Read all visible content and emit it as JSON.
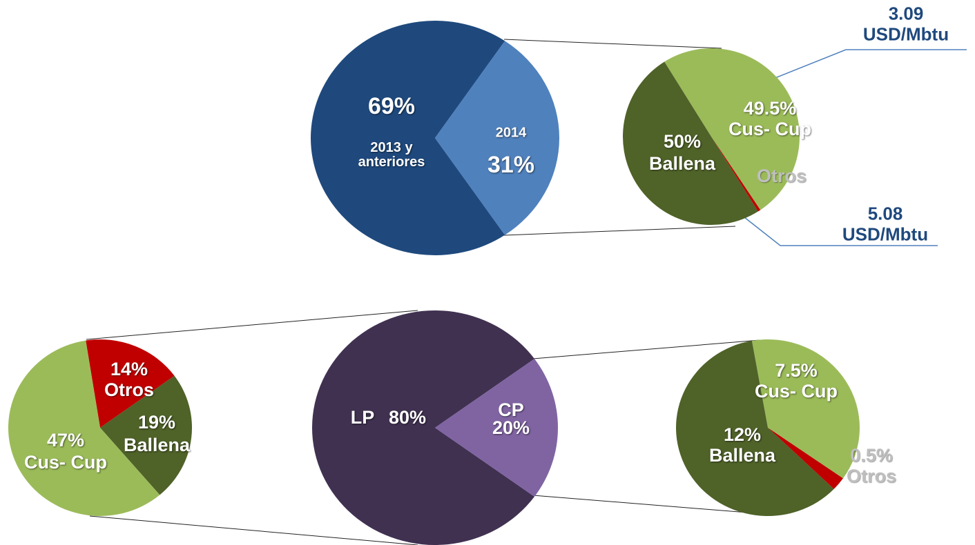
{
  "chart_data": [
    {
      "type": "pie",
      "categories": [
        "2013 y anteriores",
        "2014"
      ],
      "values": [
        69,
        31
      ],
      "value_labels": [
        "69%",
        "31%"
      ],
      "colors": [
        "#1f497d",
        "#4f81bd"
      ]
    },
    {
      "type": "pie",
      "categories": [
        "Cus- Cup",
        "Otros",
        "Ballena"
      ],
      "values": [
        49.5,
        0.5,
        50
      ],
      "value_labels": [
        "49.5%",
        null,
        "50%"
      ],
      "colors": [
        "#9bbb59",
        "#c00000",
        "#4f6228"
      ],
      "annotations": [
        [
          "3.09",
          "USD/Mbtu"
        ],
        [
          "5.08",
          "USD/Mbtu"
        ]
      ]
    },
    {
      "type": "pie",
      "categories": [
        "LP",
        "CP"
      ],
      "values": [
        80,
        20
      ],
      "value_labels": [
        "80%",
        "20%"
      ],
      "colors": [
        "#403151",
        "#8064a2"
      ]
    },
    {
      "type": "pie",
      "categories": [
        "Otros",
        "Ballena",
        "Cus- Cup"
      ],
      "values": [
        14,
        19,
        47
      ],
      "value_labels": [
        "14%",
        "19%",
        "47%"
      ],
      "colors": [
        "#c00000",
        "#4f6228",
        "#9bbb59"
      ]
    },
    {
      "type": "pie",
      "categories": [
        "Cus- Cup",
        "Otros",
        "Ballena"
      ],
      "values": [
        7.5,
        0.5,
        12
      ],
      "value_labels": [
        "7.5%",
        "0.5%",
        "12%"
      ],
      "colors": [
        "#9bbb59",
        "#c00000",
        "#4f6228"
      ]
    }
  ]
}
